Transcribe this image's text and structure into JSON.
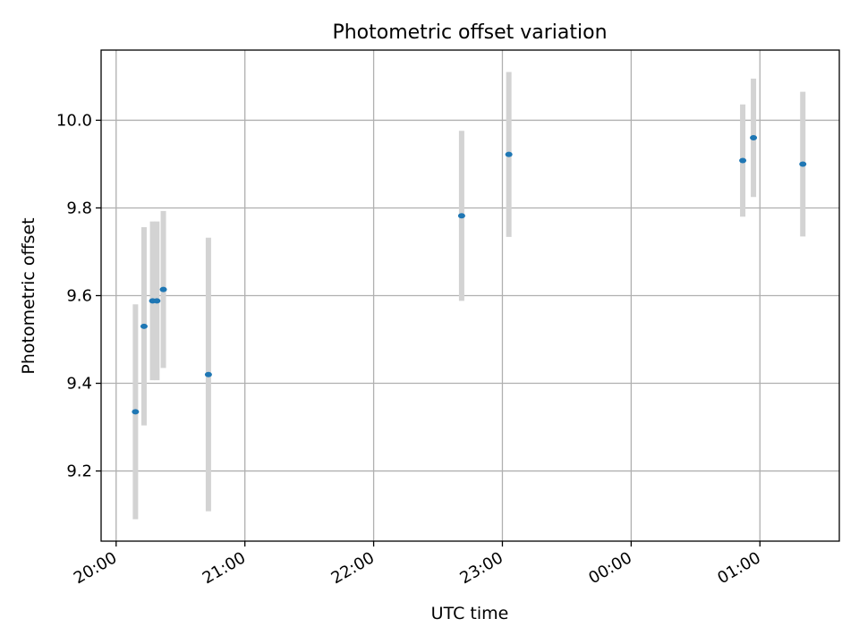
{
  "chart_data": {
    "type": "scatter",
    "title": "Photometric offset variation",
    "xlabel": "UTC time",
    "ylabel": "Photometric offset",
    "x_ticks": [
      "20:00",
      "21:00",
      "22:00",
      "23:00",
      "00:00",
      "01:00"
    ],
    "y_ticks": [
      "9.2",
      "9.4",
      "9.6",
      "9.8",
      "10.0"
    ],
    "xlim": [
      "19:53",
      "01:37"
    ],
    "ylim": [
      9.04,
      10.16
    ],
    "grid": true,
    "legend": "none",
    "colors": {
      "points": "#1f77b4",
      "errorbars": "#d3d3d3"
    },
    "points": [
      {
        "x": "20:09",
        "y": 9.335,
        "yerr": 0.245
      },
      {
        "x": "20:13",
        "y": 9.53,
        "yerr": 0.226
      },
      {
        "x": "20:17",
        "y": 9.588,
        "yerr": 0.181
      },
      {
        "x": "20:19",
        "y": 9.588,
        "yerr": 0.181
      },
      {
        "x": "20:22",
        "y": 9.614,
        "yerr": 0.179
      },
      {
        "x": "20:43",
        "y": 9.42,
        "yerr": 0.312
      },
      {
        "x": "22:41",
        "y": 9.782,
        "yerr": 0.194
      },
      {
        "x": "23:03",
        "y": 9.922,
        "yerr": 0.188
      },
      {
        "x": "00:52",
        "y": 9.908,
        "yerr": 0.128
      },
      {
        "x": "00:57",
        "y": 9.96,
        "yerr": 0.135
      },
      {
        "x": "01:20",
        "y": 9.9,
        "yerr": 0.165
      }
    ]
  }
}
